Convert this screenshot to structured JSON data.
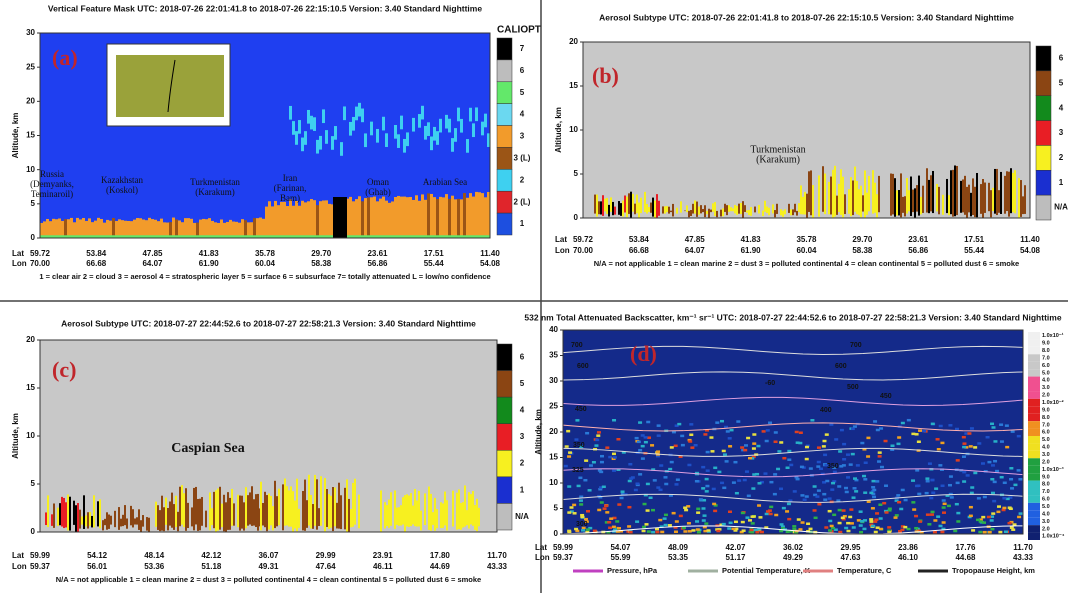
{
  "panels": [
    {
      "label": "(a)",
      "title": "Vertical Feature Mask    UTC:  2018-07-26   22:01:41.8   to   2018-07-26   22:15:10.5     Version: 3.40  Standard Nighttime",
      "colorbar_title": "CALIOPT",
      "y_axis_label": "Altitude, km",
      "yticks": [
        0,
        5,
        10,
        15,
        20,
        25,
        30
      ],
      "colorbar_labels": [
        "7",
        "6",
        "5",
        "4",
        "3",
        "3 (L)",
        "2",
        "2 (L)",
        "1"
      ],
      "annotations": [
        [
          "Russia",
          "(Demyanks,",
          "Teminaroil)"
        ],
        [
          "Kazakhstan",
          "(Koskol)"
        ],
        [
          "Turkmenistan",
          "(Karakum)"
        ],
        [
          "Iran",
          "(Farinan,",
          "Bam)"
        ],
        [
          "Oman",
          "(Ghab)"
        ],
        [
          "Arabian Sea"
        ]
      ],
      "lat_label": "Lat",
      "lon_label": "Lon",
      "lat": [
        "59.72",
        "53.84",
        "47.85",
        "41.83",
        "35.78",
        "29.70",
        "23.61",
        "17.51",
        "11.40"
      ],
      "lon": [
        "70.00",
        "66.68",
        "64.07",
        "61.90",
        "60.04",
        "58.38",
        "56.86",
        "55.44",
        "54.08"
      ],
      "legend": [
        "1 = clear air    2 = cloud    3 = aerosol    4 = stratospheric layer    5 = surface    6 = subsurface    7= totally attenuated    L = low/no confidence"
      ]
    },
    {
      "label": "(b)",
      "title": "Aerosol Subtype    UTC:  2018-07-26   22:01:41.8   to   2018-07-26   22:15:10.5     Version: 3.40  Standard Nighttime",
      "y_axis_label": "Altitude, km",
      "yticks": [
        0,
        5,
        10,
        15,
        20
      ],
      "colorbar_labels": [
        "6",
        "5",
        "4",
        "3",
        "2",
        "1",
        "N/A"
      ],
      "annotations": [
        [
          "Turkmenistan",
          "(Karakum)"
        ]
      ],
      "lat_label": "Lat",
      "lon_label": "Lon",
      "lat": [
        "59.72",
        "53.84",
        "47.85",
        "41.83",
        "35.78",
        "29.70",
        "23.61",
        "17.51",
        "11.40"
      ],
      "lon": [
        "70.00",
        "66.68",
        "64.07",
        "61.90",
        "60.04",
        "58.38",
        "56.86",
        "55.44",
        "54.08"
      ],
      "legend": [
        "N/A = not applicable    1 = clean marine    2 = dust    3 = polluted continental    4 = clean continental    5 = polluted dust    6 = smoke"
      ]
    },
    {
      "label": "(c)",
      "title": "Aerosol Subtype    UTC:  2018-07-27   22:44:52.6   to   2018-07-27   22:58:21.3     Version: 3.40  Standard Nighttime",
      "y_axis_label": "Altitude, km",
      "yticks": [
        0,
        5,
        10,
        15,
        20
      ],
      "colorbar_labels": [
        "6",
        "5",
        "4",
        "3",
        "2",
        "1",
        "N/A"
      ],
      "annotations": [
        [
          "Caspian Sea"
        ]
      ],
      "lat_label": "Lat",
      "lon_label": "Lon",
      "lat": [
        "59.99",
        "54.12",
        "48.14",
        "42.12",
        "36.07",
        "29.99",
        "23.91",
        "17.80",
        "11.70"
      ],
      "lon": [
        "59.37",
        "56.01",
        "53.36",
        "51.18",
        "49.31",
        "47.64",
        "46.11",
        "44.69",
        "43.33"
      ],
      "legend": [
        "N/A = not applicable    1 = clean marine    2 = dust    3 = polluted continental    4 = clean continental    5 = polluted dust    6 = smoke"
      ]
    },
    {
      "label": "(d)",
      "title": "532 nm Total Attenuated Backscatter, km⁻¹ sr⁻¹    UTC:  2018-07-27  22:44:52.6   to  2018-07-27  22:58:21.3    Version: 3.40  Standard Nighttime",
      "y_axis_label": "Altitude, km",
      "yticks": [
        0,
        5,
        10,
        15,
        20,
        25,
        30,
        35,
        40
      ],
      "colorbar_labels": [
        "1.0x10⁻¹",
        "9.0",
        "8.0",
        "7.0",
        "6.0",
        "5.0",
        "4.0",
        "3.0",
        "2.0",
        "1.0x10⁻²",
        "9.0",
        "8.0",
        "7.0",
        "6.0",
        "5.0",
        "4.0",
        "3.0",
        "2.0",
        "1.0x10⁻³",
        "9.0",
        "8.0",
        "7.0",
        "6.0",
        "5.0",
        "4.0",
        "3.0",
        "2.0",
        "1.0x10⁻⁴"
      ],
      "annotations": [
        [
          "700"
        ],
        [
          "700"
        ],
        [
          "600"
        ],
        [
          "600"
        ],
        [
          "500"
        ],
        [
          "450"
        ],
        [
          "450"
        ],
        [
          "400"
        ],
        [
          "350"
        ],
        [
          "350"
        ],
        [
          "325"
        ],
        [
          "300"
        ],
        [
          "-60"
        ]
      ],
      "lat_label": "Lat",
      "lon_label": "Lon",
      "lat": [
        "59.99",
        "54.07",
        "48.09",
        "42.07",
        "36.02",
        "29.95",
        "23.86",
        "17.76",
        "11.70"
      ],
      "lon": [
        "59.37",
        "55.99",
        "53.35",
        "51.17",
        "49.29",
        "47.63",
        "46.10",
        "44.68",
        "43.33"
      ],
      "legend": [
        "Pressure, hPa",
        "Potential Temperature, K",
        "Temperature, C",
        "Tropopause Height, km"
      ]
    }
  ]
}
